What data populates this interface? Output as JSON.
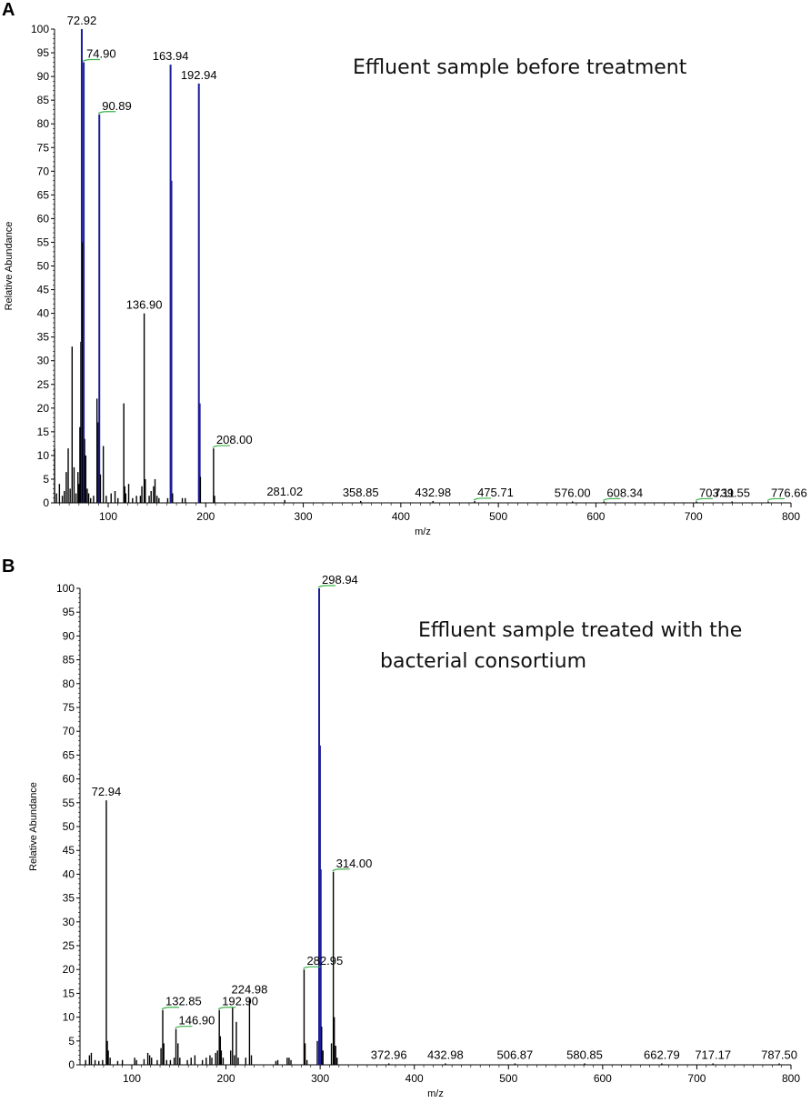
{
  "panels": [
    {
      "letter": "A",
      "subtitle": "Effluent sample before  treatment",
      "subtitle_lines": [],
      "chart_data": {
        "type": "bar",
        "subtype": "mass-spectrum",
        "title": "",
        "xlabel": "m/z",
        "ylabel": "Relative Abundance",
        "xlim": [
          45,
          800
        ],
        "ylim": [
          0,
          100
        ],
        "xticks": [
          100,
          200,
          300,
          400,
          500,
          600,
          700,
          800
        ],
        "yticks": [
          0,
          5,
          10,
          15,
          20,
          25,
          30,
          35,
          40,
          45,
          50,
          55,
          60,
          65,
          70,
          75,
          80,
          85,
          90,
          95,
          100
        ],
        "grid": false,
        "peaks": [
          {
            "mz": 45,
            "i": 11.5,
            "c": "k"
          },
          {
            "mz": 47,
            "i": 2,
            "c": "k"
          },
          {
            "mz": 50,
            "i": 4,
            "c": "k"
          },
          {
            "mz": 53,
            "i": 1.5,
            "c": "k"
          },
          {
            "mz": 55,
            "i": 2.5,
            "c": "k"
          },
          {
            "mz": 57,
            "i": 6.5,
            "c": "k"
          },
          {
            "mz": 59,
            "i": 11.5,
            "c": "k"
          },
          {
            "mz": 61,
            "i": 3,
            "c": "k"
          },
          {
            "mz": 63,
            "i": 33,
            "c": "k"
          },
          {
            "mz": 65,
            "i": 7.5,
            "c": "k"
          },
          {
            "mz": 67,
            "i": 2,
            "c": "k"
          },
          {
            "mz": 69,
            "i": 6.5,
            "c": "k"
          },
          {
            "mz": 70,
            "i": 4,
            "c": "k"
          },
          {
            "mz": 71,
            "i": 16,
            "c": "k"
          },
          {
            "mz": 72,
            "i": 34,
            "c": "k"
          },
          {
            "mz": 72.92,
            "i": 100,
            "c": "b"
          },
          {
            "mz": 73.6,
            "i": 55,
            "c": "k"
          },
          {
            "mz": 74.9,
            "i": 93,
            "c": "b"
          },
          {
            "mz": 75.8,
            "i": 13.5,
            "c": "k"
          },
          {
            "mz": 77,
            "i": 10,
            "c": "k"
          },
          {
            "mz": 78.5,
            "i": 3,
            "c": "k"
          },
          {
            "mz": 80,
            "i": 2,
            "c": "k"
          },
          {
            "mz": 82,
            "i": 1,
            "c": "k"
          },
          {
            "mz": 85,
            "i": 1.5,
            "c": "k"
          },
          {
            "mz": 88.5,
            "i": 22,
            "c": "k"
          },
          {
            "mz": 89.8,
            "i": 17,
            "c": "k"
          },
          {
            "mz": 90.89,
            "i": 82,
            "c": "b"
          },
          {
            "mz": 92,
            "i": 6,
            "c": "k"
          },
          {
            "mz": 95,
            "i": 12,
            "c": "k"
          },
          {
            "mz": 98,
            "i": 1.5,
            "c": "k"
          },
          {
            "mz": 103,
            "i": 2,
            "c": "k"
          },
          {
            "mz": 107,
            "i": 2.5,
            "c": "k"
          },
          {
            "mz": 110,
            "i": 1,
            "c": "k"
          },
          {
            "mz": 116,
            "i": 21,
            "c": "k"
          },
          {
            "mz": 117,
            "i": 3.5,
            "c": "k"
          },
          {
            "mz": 118,
            "i": 2,
            "c": "k"
          },
          {
            "mz": 121,
            "i": 4,
            "c": "k"
          },
          {
            "mz": 125,
            "i": 1,
            "c": "k"
          },
          {
            "mz": 129,
            "i": 1.5,
            "c": "k"
          },
          {
            "mz": 133,
            "i": 1.5,
            "c": "k"
          },
          {
            "mz": 134.5,
            "i": 3.5,
            "c": "k"
          },
          {
            "mz": 136.9,
            "i": 40,
            "c": "k"
          },
          {
            "mz": 138,
            "i": 5,
            "c": "k"
          },
          {
            "mz": 142,
            "i": 1.5,
            "c": "k"
          },
          {
            "mz": 144,
            "i": 2.5,
            "c": "k"
          },
          {
            "mz": 146.5,
            "i": 3.5,
            "c": "k"
          },
          {
            "mz": 148,
            "i": 5,
            "c": "k"
          },
          {
            "mz": 150,
            "i": 1.5,
            "c": "k"
          },
          {
            "mz": 152,
            "i": 1,
            "c": "k"
          },
          {
            "mz": 161,
            "i": 1,
            "c": "k"
          },
          {
            "mz": 163.94,
            "i": 92.5,
            "c": "b"
          },
          {
            "mz": 164.8,
            "i": 68,
            "c": "b"
          },
          {
            "mz": 166,
            "i": 2,
            "c": "k"
          },
          {
            "mz": 176,
            "i": 1,
            "c": "k"
          },
          {
            "mz": 179,
            "i": 1,
            "c": "k"
          },
          {
            "mz": 192.94,
            "i": 88.5,
            "c": "b"
          },
          {
            "mz": 193.8,
            "i": 21,
            "c": "b"
          },
          {
            "mz": 194.5,
            "i": 5.5,
            "c": "k"
          },
          {
            "mz": 208,
            "i": 11.5,
            "c": "k"
          },
          {
            "mz": 209,
            "i": 1.5,
            "c": "k"
          },
          {
            "mz": 281.02,
            "i": 0.6,
            "c": "k"
          },
          {
            "mz": 358.85,
            "i": 0.4,
            "c": "k"
          },
          {
            "mz": 432.98,
            "i": 0.4,
            "c": "k"
          },
          {
            "mz": 475.71,
            "i": 0.4,
            "c": "k"
          },
          {
            "mz": 576,
            "i": 0.3,
            "c": "k"
          },
          {
            "mz": 608.34,
            "i": 0.3,
            "c": "k"
          },
          {
            "mz": 703.11,
            "i": 0.3,
            "c": "k"
          },
          {
            "mz": 739.55,
            "i": 0.3,
            "c": "k"
          },
          {
            "mz": 776.66,
            "i": 0.3,
            "c": "k"
          }
        ],
        "annotations": [
          {
            "text": "72.92",
            "mz": 72.92,
            "i": 100,
            "tick": false
          },
          {
            "text": "74.90",
            "mz": 74.9,
            "i": 93,
            "tick": true
          },
          {
            "text": "90.89",
            "mz": 90.89,
            "i": 82,
            "tick": true
          },
          {
            "text": "163.94",
            "mz": 163.94,
            "i": 92.5,
            "tick": false
          },
          {
            "text": "192.94",
            "mz": 192.94,
            "i": 88.5,
            "tick": false
          },
          {
            "text": "136.90",
            "mz": 136.9,
            "i": 40,
            "tick": false
          },
          {
            "text": "208.00",
            "mz": 208,
            "i": 11.5,
            "tick": true
          },
          {
            "text": "281.02",
            "mz": 281.02,
            "i": 0.6,
            "tick": false
          },
          {
            "text": "358.85",
            "mz": 358.85,
            "i": 0.4,
            "tick": false
          },
          {
            "text": "432.98",
            "mz": 432.98,
            "i": 0.4,
            "tick": false
          },
          {
            "text": "475.71",
            "mz": 475.71,
            "i": 0.4,
            "tick": true
          },
          {
            "text": "576.00",
            "mz": 576,
            "i": 0.3,
            "tick": false
          },
          {
            "text": "608.34",
            "mz": 608.34,
            "i": 0.3,
            "tick": true
          },
          {
            "text": "703.11",
            "mz": 703.11,
            "i": 0.3,
            "tick": true
          },
          {
            "text": "739.55",
            "mz": 739.55,
            "i": 0.3,
            "tick": false
          },
          {
            "text": "776.66",
            "mz": 776.66,
            "i": 0.3,
            "tick": true
          }
        ]
      }
    },
    {
      "letter": "B",
      "subtitle": "",
      "subtitle_lines": [
        "Effluent sample treated with the",
        "bacterial consortium"
      ],
      "chart_data": {
        "type": "bar",
        "subtype": "mass-spectrum",
        "title": "",
        "xlabel": "m/z",
        "ylabel": "Relative Abundance",
        "xlim": [
          45,
          800
        ],
        "ylim": [
          0,
          100
        ],
        "xticks": [
          100,
          200,
          300,
          400,
          500,
          600,
          700,
          800
        ],
        "yticks": [
          0,
          5,
          10,
          15,
          20,
          25,
          30,
          35,
          40,
          45,
          50,
          55,
          60,
          65,
          70,
          75,
          80,
          85,
          90,
          95,
          100
        ],
        "grid": false,
        "peaks": [
          {
            "mz": 51,
            "i": 1,
            "c": "k"
          },
          {
            "mz": 55,
            "i": 2,
            "c": "k"
          },
          {
            "mz": 57,
            "i": 2.5,
            "c": "k"
          },
          {
            "mz": 61,
            "i": 1,
            "c": "k"
          },
          {
            "mz": 65,
            "i": 0.8,
            "c": "k"
          },
          {
            "mz": 69,
            "i": 1,
            "c": "k"
          },
          {
            "mz": 72.94,
            "i": 55.5,
            "c": "k"
          },
          {
            "mz": 74,
            "i": 5,
            "c": "k"
          },
          {
            "mz": 75,
            "i": 3,
            "c": "k"
          },
          {
            "mz": 77,
            "i": 1.5,
            "c": "k"
          },
          {
            "mz": 85,
            "i": 0.8,
            "c": "k"
          },
          {
            "mz": 90,
            "i": 1,
            "c": "k"
          },
          {
            "mz": 103,
            "i": 1.5,
            "c": "k"
          },
          {
            "mz": 105,
            "i": 1,
            "c": "k"
          },
          {
            "mz": 113,
            "i": 1.2,
            "c": "k"
          },
          {
            "mz": 117,
            "i": 2.5,
            "c": "k"
          },
          {
            "mz": 119,
            "i": 2,
            "c": "k"
          },
          {
            "mz": 121,
            "i": 1.5,
            "c": "k"
          },
          {
            "mz": 127,
            "i": 1,
            "c": "k"
          },
          {
            "mz": 131,
            "i": 3.5,
            "c": "k"
          },
          {
            "mz": 132.85,
            "i": 11.5,
            "c": "k"
          },
          {
            "mz": 134,
            "i": 4.5,
            "c": "k"
          },
          {
            "mz": 137,
            "i": 1,
            "c": "k"
          },
          {
            "mz": 141,
            "i": 1,
            "c": "k"
          },
          {
            "mz": 145,
            "i": 1.5,
            "c": "k"
          },
          {
            "mz": 146.9,
            "i": 7.5,
            "c": "k"
          },
          {
            "mz": 149,
            "i": 4.5,
            "c": "k"
          },
          {
            "mz": 151,
            "i": 1.5,
            "c": "k"
          },
          {
            "mz": 159,
            "i": 1,
            "c": "k"
          },
          {
            "mz": 163,
            "i": 1.5,
            "c": "k"
          },
          {
            "mz": 167,
            "i": 2,
            "c": "k"
          },
          {
            "mz": 175,
            "i": 1,
            "c": "k"
          },
          {
            "mz": 179,
            "i": 1.5,
            "c": "k"
          },
          {
            "mz": 183,
            "i": 2,
            "c": "k"
          },
          {
            "mz": 185,
            "i": 1.5,
            "c": "k"
          },
          {
            "mz": 189,
            "i": 2.5,
            "c": "k"
          },
          {
            "mz": 191,
            "i": 3,
            "c": "k"
          },
          {
            "mz": 192.9,
            "i": 11.5,
            "c": "k"
          },
          {
            "mz": 194,
            "i": 6,
            "c": "k"
          },
          {
            "mz": 195,
            "i": 3,
            "c": "k"
          },
          {
            "mz": 197,
            "i": 1.5,
            "c": "k"
          },
          {
            "mz": 205,
            "i": 3,
            "c": "k"
          },
          {
            "mz": 207,
            "i": 12,
            "c": "k"
          },
          {
            "mz": 209,
            "i": 2,
            "c": "k"
          },
          {
            "mz": 211,
            "i": 9,
            "c": "k"
          },
          {
            "mz": 213,
            "i": 1.5,
            "c": "k"
          },
          {
            "mz": 221,
            "i": 1.5,
            "c": "k"
          },
          {
            "mz": 224.98,
            "i": 14,
            "c": "k"
          },
          {
            "mz": 227,
            "i": 2,
            "c": "k"
          },
          {
            "mz": 253,
            "i": 0.8,
            "c": "k"
          },
          {
            "mz": 255,
            "i": 1,
            "c": "k"
          },
          {
            "mz": 265,
            "i": 1.5,
            "c": "k"
          },
          {
            "mz": 267,
            "i": 1.5,
            "c": "k"
          },
          {
            "mz": 269,
            "i": 1,
            "c": "k"
          },
          {
            "mz": 282.95,
            "i": 20,
            "c": "k"
          },
          {
            "mz": 284,
            "i": 4.5,
            "c": "k"
          },
          {
            "mz": 286,
            "i": 1,
            "c": "k"
          },
          {
            "mz": 297,
            "i": 5,
            "c": "k"
          },
          {
            "mz": 298.94,
            "i": 100,
            "c": "b"
          },
          {
            "mz": 299.8,
            "i": 67,
            "c": "b"
          },
          {
            "mz": 300.6,
            "i": 41,
            "c": "b"
          },
          {
            "mz": 301.6,
            "i": 8,
            "c": "k"
          },
          {
            "mz": 303,
            "i": 3,
            "c": "k"
          },
          {
            "mz": 312,
            "i": 4.5,
            "c": "k"
          },
          {
            "mz": 314,
            "i": 40.5,
            "c": "k"
          },
          {
            "mz": 315,
            "i": 10,
            "c": "k"
          },
          {
            "mz": 316.5,
            "i": 4,
            "c": "k"
          },
          {
            "mz": 318,
            "i": 1.5,
            "c": "k"
          },
          {
            "mz": 372.96,
            "i": 0.3,
            "c": "k"
          },
          {
            "mz": 432.98,
            "i": 0.3,
            "c": "k"
          },
          {
            "mz": 506.87,
            "i": 0.3,
            "c": "k"
          },
          {
            "mz": 580.85,
            "i": 0.3,
            "c": "k"
          },
          {
            "mz": 662.79,
            "i": 0.3,
            "c": "k"
          },
          {
            "mz": 717.17,
            "i": 0.3,
            "c": "k"
          },
          {
            "mz": 787.5,
            "i": 0.3,
            "c": "k"
          }
        ],
        "annotations": [
          {
            "text": "298.94",
            "mz": 298.94,
            "i": 100,
            "tick": true
          },
          {
            "text": "72.94",
            "mz": 72.94,
            "i": 55.5,
            "tick": false
          },
          {
            "text": "314.00",
            "mz": 314,
            "i": 40.5,
            "tick": true
          },
          {
            "text": "282.95",
            "mz": 282.95,
            "i": 20,
            "tick": true
          },
          {
            "text": "224.98",
            "mz": 224.98,
            "i": 14,
            "tick": false
          },
          {
            "text": "132.85",
            "mz": 132.85,
            "i": 11.5,
            "tick": true
          },
          {
            "text": "192.90",
            "mz": 192.9,
            "i": 11.5,
            "tick": true
          },
          {
            "text": "146.90",
            "mz": 146.9,
            "i": 7.5,
            "tick": true
          },
          {
            "text": "372.96",
            "mz": 372.96,
            "i": 0.3,
            "tick": false
          },
          {
            "text": "432.98",
            "mz": 432.98,
            "i": 0.3,
            "tick": false
          },
          {
            "text": "506.87",
            "mz": 506.87,
            "i": 0.3,
            "tick": false
          },
          {
            "text": "580.85",
            "mz": 580.85,
            "i": 0.3,
            "tick": false
          },
          {
            "text": "662.79",
            "mz": 662.79,
            "i": 0.3,
            "tick": false
          },
          {
            "text": "717.17",
            "mz": 717.17,
            "i": 0.3,
            "tick": false
          },
          {
            "text": "787.50",
            "mz": 787.5,
            "i": 0.3,
            "tick": false
          }
        ]
      }
    }
  ],
  "colors": {
    "blue_peak": "#1c1c9c",
    "black_peak": "#000000",
    "tick_marker": "#3cb44b"
  }
}
